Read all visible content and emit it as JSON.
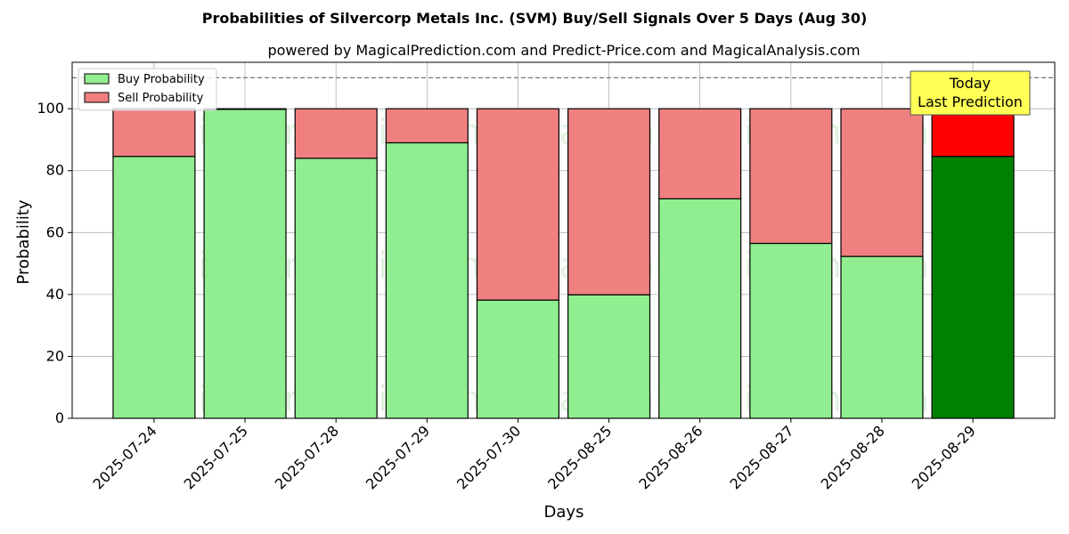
{
  "chart_data": {
    "type": "bar",
    "stacked": true,
    "title": "Probabilities of Silvercorp Metals Inc. (SVM) Buy/Sell Signals Over 5 Days (Aug 30)",
    "subtitle": "powered by MagicalPrediction.com and Predict-Price.com and MagicalAnalysis.com",
    "xlabel": "Days",
    "ylabel": "Probability",
    "ylim": [
      0,
      115
    ],
    "yticks": [
      0,
      20,
      40,
      60,
      80,
      100
    ],
    "grid": true,
    "legend_position": "top-left",
    "categories": [
      "2025-07-24",
      "2025-07-25",
      "2025-07-28",
      "2025-07-29",
      "2025-07-30",
      "2025-08-25",
      "2025-08-26",
      "2025-08-27",
      "2025-08-28",
      "2025-08-29"
    ],
    "series": [
      {
        "name": "Buy Probability",
        "values": [
          84.6,
          99.8,
          84.0,
          89.0,
          38.2,
          39.9,
          70.9,
          56.5,
          52.3,
          84.6
        ]
      },
      {
        "name": "Sell Probability",
        "values": [
          15.4,
          0.2,
          16.0,
          11.0,
          61.8,
          60.1,
          29.1,
          43.5,
          47.7,
          15.4
        ]
      }
    ],
    "reference_line": {
      "y": 110,
      "style": "dashed"
    },
    "annotation": {
      "line1": "Today",
      "line2": "Last Prediction",
      "category": "2025-08-29"
    },
    "watermarks": [
      "MagicalAnalysis.com",
      "MagicalPrediction.com"
    ],
    "colors": {
      "buy": "#90ee90",
      "sell": "#f08080",
      "buy_highlight": "#008000",
      "sell_highlight": "#ff0000",
      "annotation_bg": "#ffff55",
      "grid": "#b0b0b0",
      "watermark": "rgba(60,170,60,0.16)"
    },
    "highlight_index": 9
  }
}
